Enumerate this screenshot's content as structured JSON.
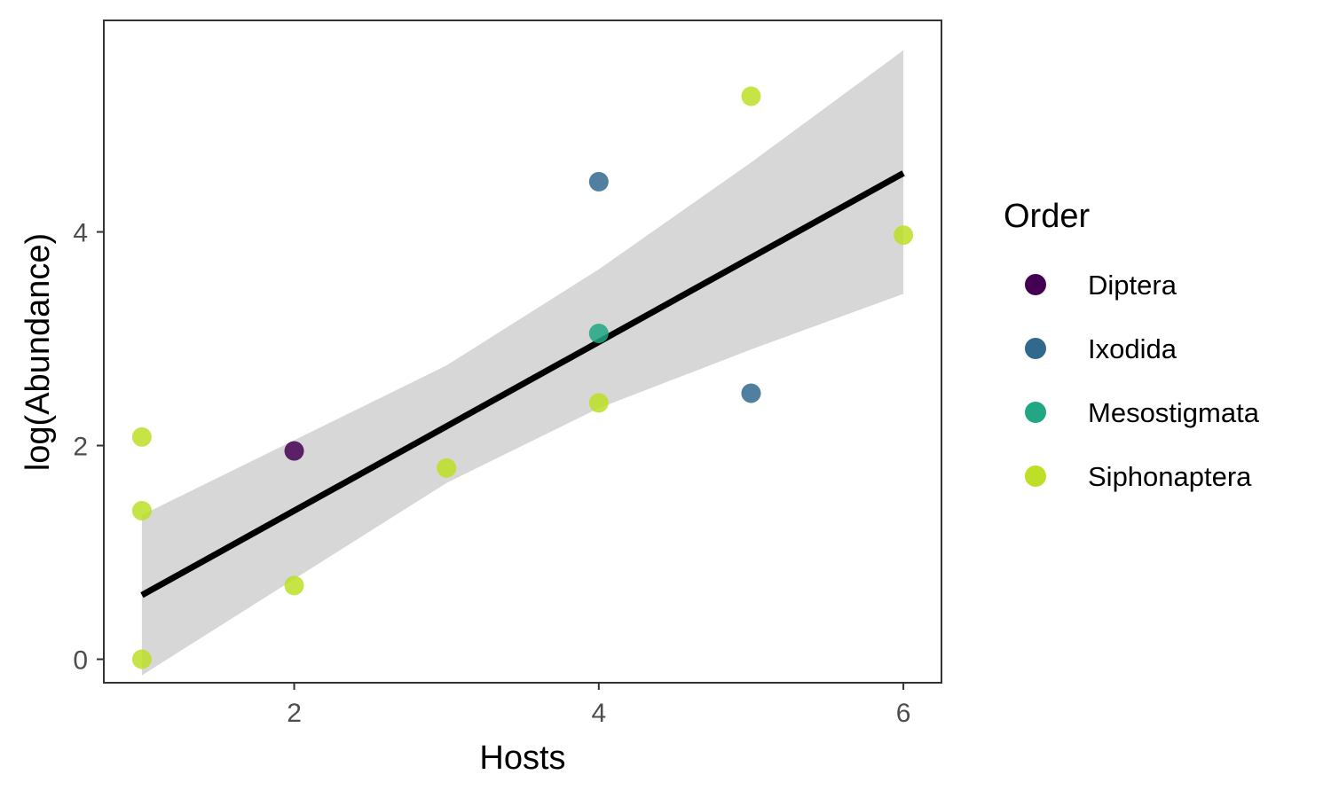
{
  "chart_data": {
    "type": "scatter",
    "xlabel": "Hosts",
    "ylabel": "log(Abundance)",
    "xlim": [
      0.75,
      6.25
    ],
    "ylim": [
      -0.22,
      5.98
    ],
    "x_ticks": [
      2,
      4,
      6
    ],
    "y_ticks": [
      0,
      2,
      4
    ],
    "grid": false,
    "legend": {
      "title": "Order",
      "position": "right",
      "entries": [
        {
          "label": "Diptera",
          "color": "#440154"
        },
        {
          "label": "Ixodida",
          "color": "#31688e"
        },
        {
          "label": "Mesostigmata",
          "color": "#21a784"
        },
        {
          "label": "Siphonaptera",
          "color": "#bddf26"
        }
      ]
    },
    "series": [
      {
        "name": "Diptera",
        "color": "#440154",
        "points": [
          {
            "x": 2,
            "y": 1.95
          }
        ]
      },
      {
        "name": "Ixodida",
        "color": "#31688e",
        "points": [
          {
            "x": 4,
            "y": 4.47
          },
          {
            "x": 5,
            "y": 2.49
          }
        ]
      },
      {
        "name": "Mesostigmata",
        "color": "#21a784",
        "points": [
          {
            "x": 4,
            "y": 3.05
          }
        ]
      },
      {
        "name": "Siphonaptera",
        "color": "#bddf26",
        "points": [
          {
            "x": 1,
            "y": 0.0
          },
          {
            "x": 1,
            "y": 1.39
          },
          {
            "x": 1,
            "y": 2.08
          },
          {
            "x": 2,
            "y": 0.69
          },
          {
            "x": 3,
            "y": 1.79
          },
          {
            "x": 4,
            "y": 2.4
          },
          {
            "x": 5,
            "y": 5.27
          },
          {
            "x": 6,
            "y": 3.97
          }
        ]
      }
    ],
    "fit": {
      "type": "linear",
      "color": "#000000",
      "line": [
        {
          "x": 1,
          "y": 0.6
        },
        {
          "x": 6,
          "y": 4.55
        }
      ],
      "band_color": "#d3d3d3",
      "band": [
        {
          "x": 1,
          "lo": -0.15,
          "hi": 1.35
        },
        {
          "x": 2,
          "lo": 0.75,
          "hi": 2.05
        },
        {
          "x": 3,
          "lo": 1.65,
          "hi": 2.75
        },
        {
          "x": 4,
          "lo": 2.35,
          "hi": 3.65
        },
        {
          "x": 5,
          "lo": 2.9,
          "hi": 4.65
        },
        {
          "x": 6,
          "lo": 3.42,
          "hi": 5.7
        }
      ]
    }
  }
}
